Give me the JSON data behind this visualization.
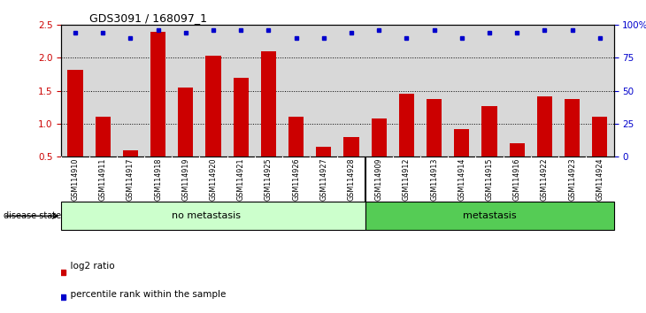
{
  "title": "GDS3091 / 168097_1",
  "samples": [
    "GSM114910",
    "GSM114911",
    "GSM114917",
    "GSM114918",
    "GSM114919",
    "GSM114920",
    "GSM114921",
    "GSM114925",
    "GSM114926",
    "GSM114927",
    "GSM114928",
    "GSM114909",
    "GSM114912",
    "GSM114913",
    "GSM114914",
    "GSM114915",
    "GSM114916",
    "GSM114922",
    "GSM114923",
    "GSM114924"
  ],
  "log2_ratio": [
    1.82,
    1.1,
    0.6,
    2.4,
    1.55,
    2.03,
    1.7,
    2.1,
    1.1,
    0.65,
    0.8,
    1.08,
    1.45,
    1.37,
    0.92,
    1.27,
    0.7,
    1.42,
    1.37,
    1.1
  ],
  "percentile_y_left": [
    2.38,
    2.38,
    2.3,
    2.42,
    2.38,
    2.42,
    2.42,
    2.42,
    2.3,
    2.3,
    2.38,
    2.42,
    2.3,
    2.42,
    2.3,
    2.38,
    2.38,
    2.42,
    2.42,
    2.3
  ],
  "no_metastasis_count": 11,
  "metastasis_count": 9,
  "bar_color": "#cc0000",
  "dot_color": "#0000cc",
  "no_met_color": "#ccffcc",
  "met_color": "#55cc55",
  "ylim_left": [
    0.5,
    2.5
  ],
  "ylim_right": [
    0,
    100
  ],
  "yticks_left": [
    0.5,
    1.0,
    1.5,
    2.0,
    2.5
  ],
  "yticks_right": [
    0,
    25,
    50,
    75,
    100
  ],
  "plot_bg": "#d8d8d8",
  "grid_lines": [
    1.0,
    1.5,
    2.0
  ]
}
